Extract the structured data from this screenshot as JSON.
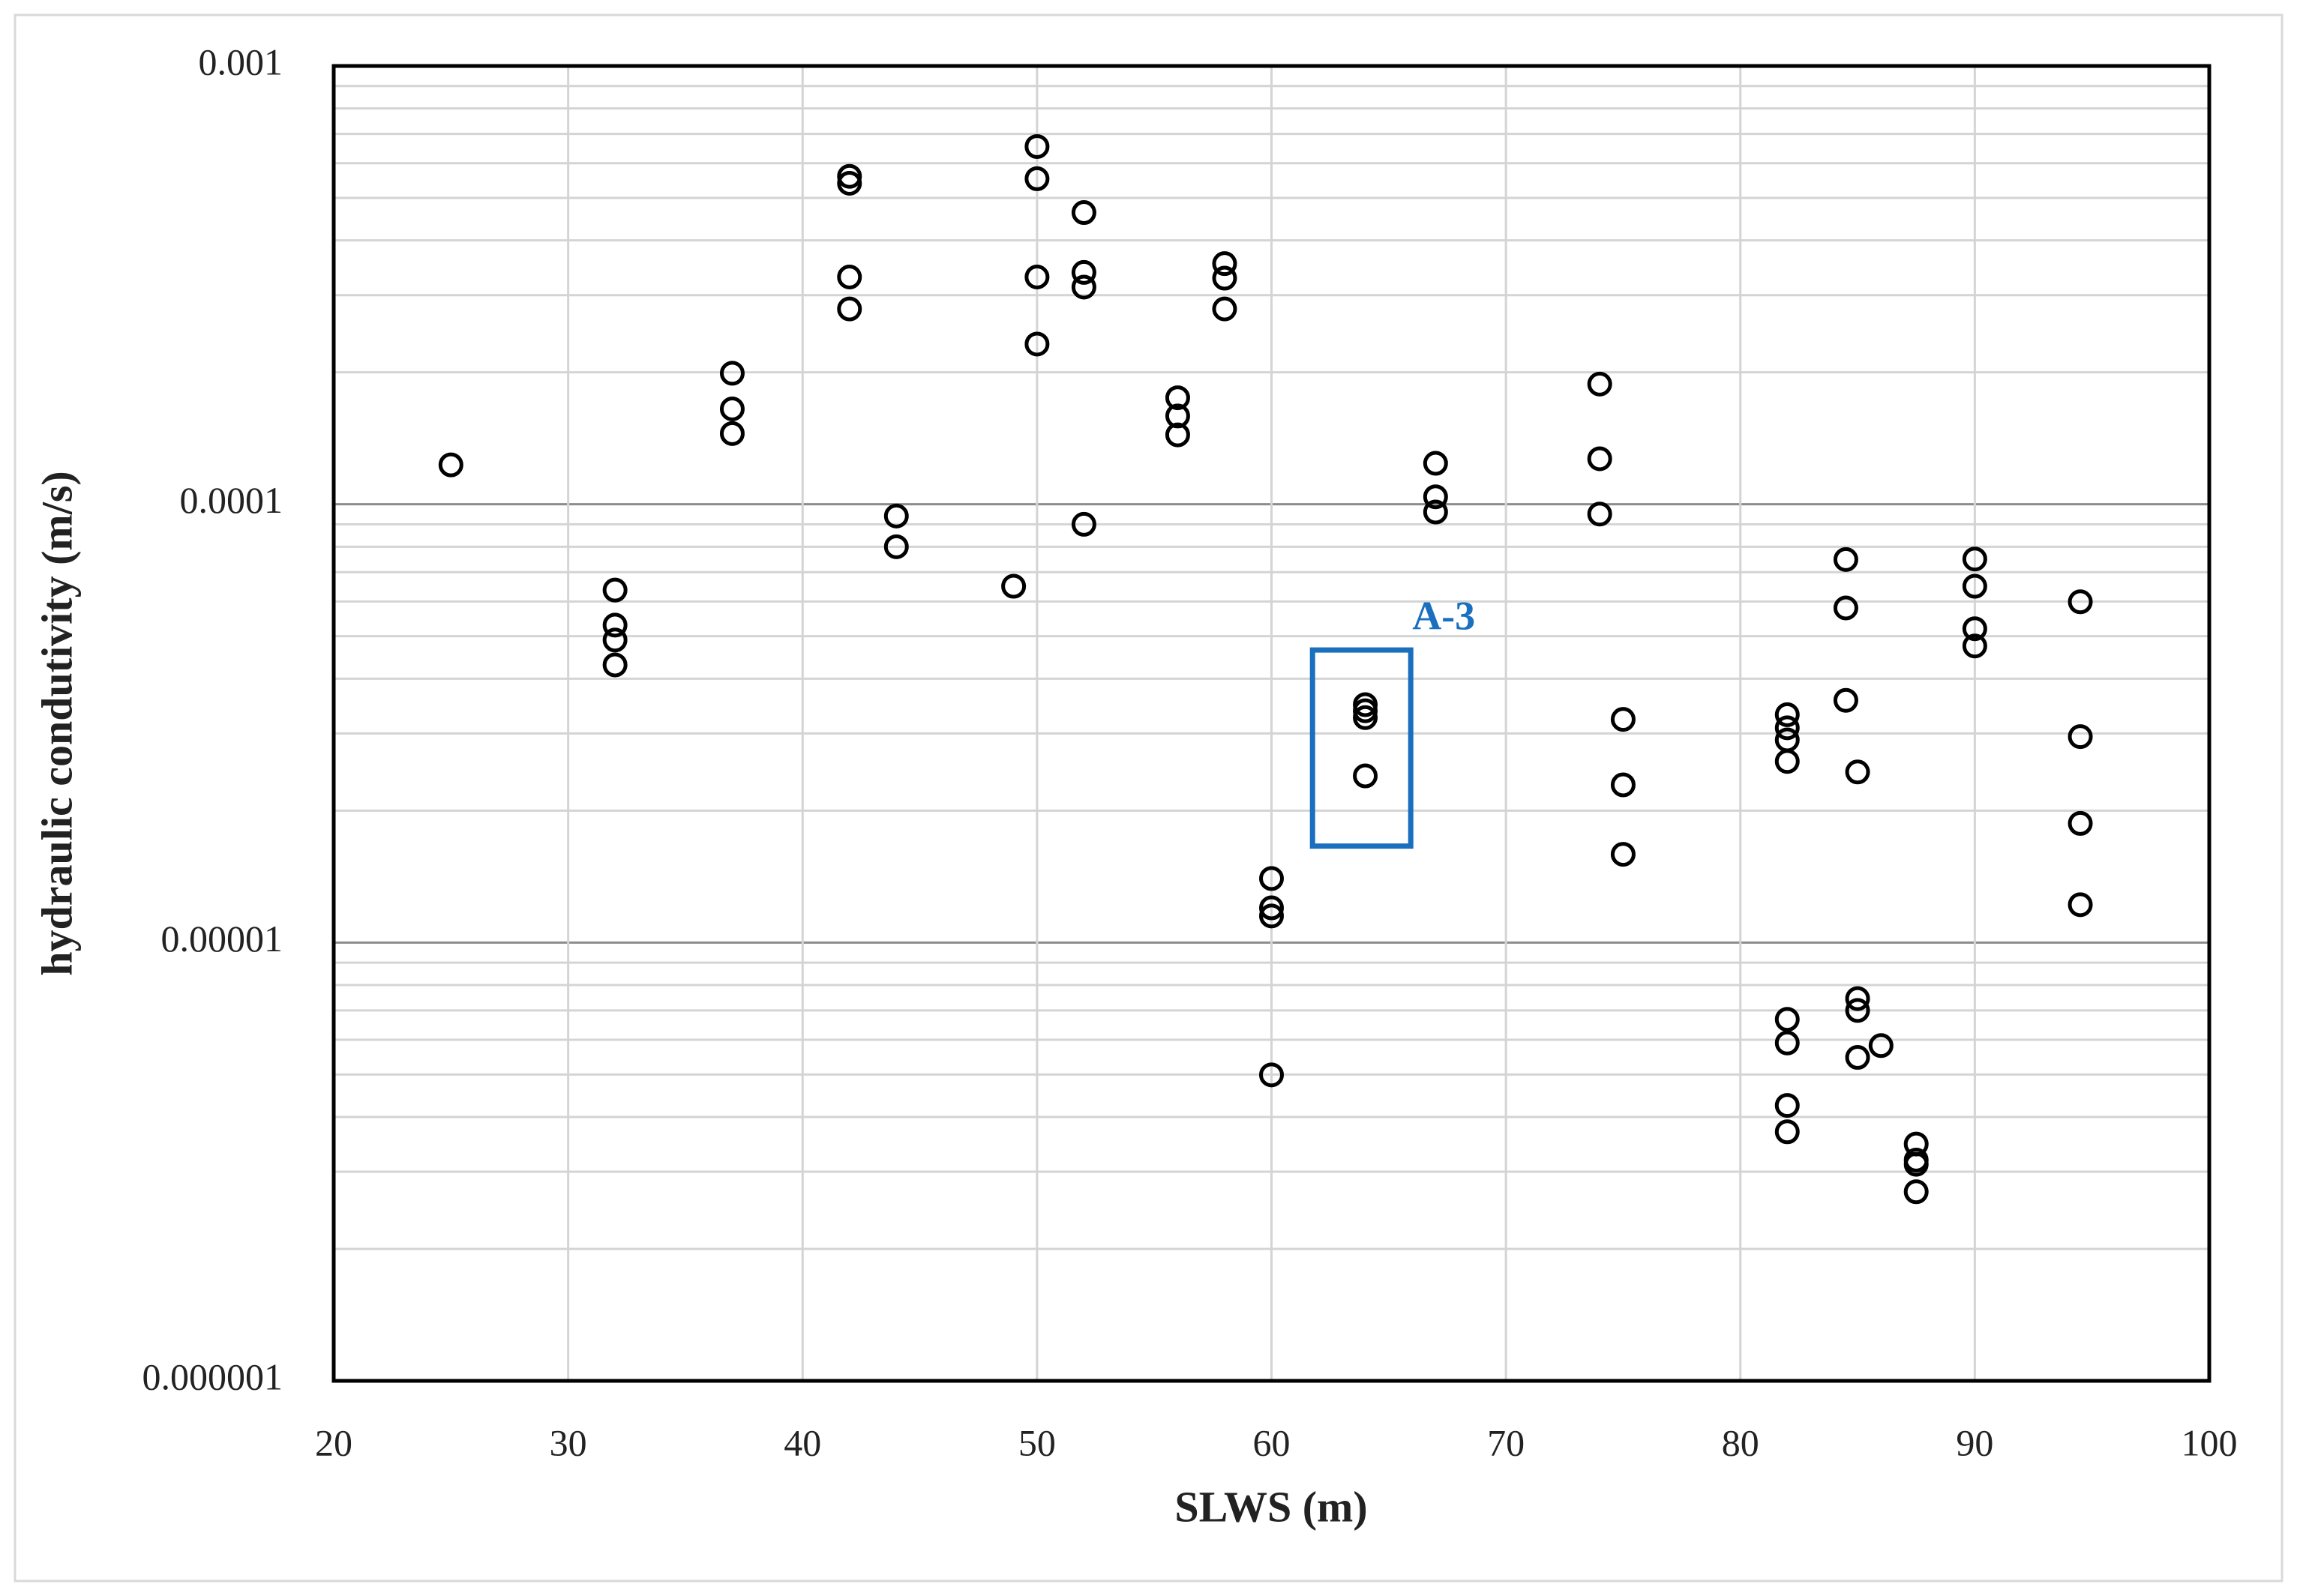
{
  "chart_data": {
    "type": "scatter",
    "x_label": "SLWS (m)",
    "y_label": "hydraulic condutivity (m/s)",
    "x": [
      25,
      32,
      32,
      32,
      32,
      37,
      37,
      37,
      42,
      42,
      42,
      42,
      44,
      44,
      49,
      50,
      50,
      50,
      50,
      52,
      52,
      52,
      52,
      56,
      56,
      56,
      58,
      58,
      58,
      60,
      60,
      60,
      60,
      64,
      64,
      64,
      64,
      67,
      67,
      67,
      74,
      74,
      74,
      75,
      75,
      75,
      82,
      82,
      82,
      82,
      82,
      82,
      82,
      82,
      84.5,
      84.5,
      84.5,
      85,
      85,
      85,
      85,
      86,
      87.5,
      87.5,
      87.5,
      87.5,
      90,
      90,
      90,
      90,
      94.5,
      94.5,
      94.5,
      94.5
    ],
    "values": [
      0.000123,
      6.37e-05,
      5.3e-05,
      4.9e-05,
      4.3e-05,
      0.000199,
      0.000165,
      0.000145,
      0.00056,
      0.00054,
      0.00033,
      0.000279,
      9.4e-05,
      8e-05,
      6.5e-05,
      0.000655,
      0.000553,
      0.00033,
      0.000232,
      0.000463,
      0.000338,
      0.000313,
      9e-05,
      0.000175,
      0.000159,
      0.000144,
      0.000354,
      0.000328,
      0.000279,
      1.4e-05,
      1.2e-05,
      1.15e-05,
      4.99e-06,
      3.49e-05,
      3.38e-05,
      3.26e-05,
      2.4e-05,
      0.000124,
      0.000104,
      9.6e-05,
      0.000188,
      0.000127,
      9.5e-05,
      3.23e-05,
      2.29e-05,
      1.59e-05,
      3.31e-05,
      3.09e-05,
      2.9e-05,
      2.59e-05,
      6.68e-06,
      5.9e-06,
      4.25e-06,
      3.7e-06,
      7.48e-05,
      5.8e-05,
      3.57e-05,
      2.45e-05,
      7.45e-06,
      7e-06,
      5.47e-06,
      5.82e-06,
      3.47e-06,
      3.19e-06,
      3.12e-06,
      2.7e-06,
      7.5e-05,
      6.5e-05,
      5.2e-05,
      4.75e-05,
      5.99e-05,
      2.95e-05,
      1.87e-05,
      1.22e-05
    ],
    "color": "#000000",
    "xlim": [
      20,
      100
    ],
    "xticks": [
      20,
      30,
      40,
      50,
      60,
      70,
      80,
      90,
      100
    ],
    "ylim": [
      1e-06,
      0.001
    ],
    "yticks": [
      1e-06,
      1e-05,
      0.0001,
      0.001
    ],
    "log_y": true,
    "grid": true,
    "minor_grid": true,
    "annotation": {
      "text": "A-3",
      "color": "#1a6fbe",
      "x": [
        61.75,
        65.94
      ],
      "y": [
        4.65e-05,
        1.66e-05
      ]
    }
  }
}
